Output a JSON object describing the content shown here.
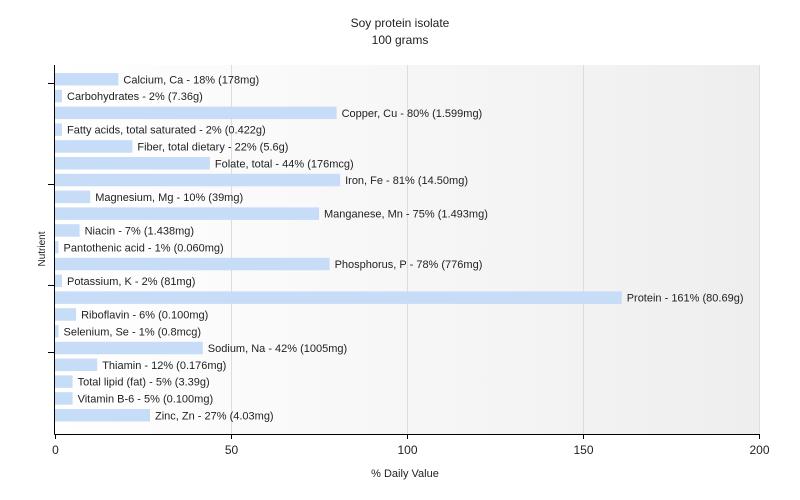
{
  "chart_data": {
    "type": "bar",
    "orientation": "horizontal",
    "title": "Soy protein isolate",
    "subtitle": "100 grams",
    "xlabel": "% Daily Value",
    "ylabel": "Nutrient",
    "xlim": [
      0,
      200
    ],
    "x_ticks": [
      "0",
      "50",
      "100",
      "150",
      "200"
    ],
    "grid": "vertical",
    "bar_color": "#c6dcf7",
    "categories": [
      "Calcium, Ca",
      "Carbohydrates",
      "Copper, Cu",
      "Fatty acids, total saturated",
      "Fiber, total dietary",
      "Folate, total",
      "Iron, Fe",
      "Magnesium, Mg",
      "Manganese, Mn",
      "Niacin",
      "Pantothenic acid",
      "Phosphorus, P",
      "Potassium, K",
      "Protein",
      "Riboflavin",
      "Selenium, Se",
      "Sodium, Na",
      "Thiamin",
      "Total lipid (fat)",
      "Vitamin B-6",
      "Zinc, Zn"
    ],
    "values": [
      18,
      2,
      80,
      2,
      22,
      44,
      81,
      10,
      75,
      7,
      1,
      78,
      2,
      161,
      6,
      1,
      42,
      12,
      5,
      5,
      27
    ],
    "labels": [
      "Calcium, Ca - 18% (178mg)",
      "Carbohydrates - 2% (7.36g)",
      "Copper, Cu - 80% (1.599mg)",
      "Fatty acids, total saturated - 2% (0.422g)",
      "Fiber, total dietary - 22% (5.6g)",
      "Folate, total - 44% (176mcg)",
      "Iron, Fe - 81% (14.50mg)",
      "Magnesium, Mg - 10% (39mg)",
      "Manganese, Mn - 75% (1.493mg)",
      "Niacin - 7% (1.438mg)",
      "Pantothenic acid - 1% (0.060mg)",
      "Phosphorus, P - 78% (776mg)",
      "Potassium, K - 2% (81mg)",
      "Protein - 161% (80.69g)",
      "Riboflavin - 6% (0.100mg)",
      "Selenium, Se - 1% (0.8mcg)",
      "Sodium, Na - 42% (1005mg)",
      "Thiamin - 12% (0.176mg)",
      "Total lipid (fat) - 5% (3.39g)",
      "Vitamin B-6 - 5% (0.100mg)",
      "Zinc, Zn - 27% (4.03mg)"
    ]
  }
}
